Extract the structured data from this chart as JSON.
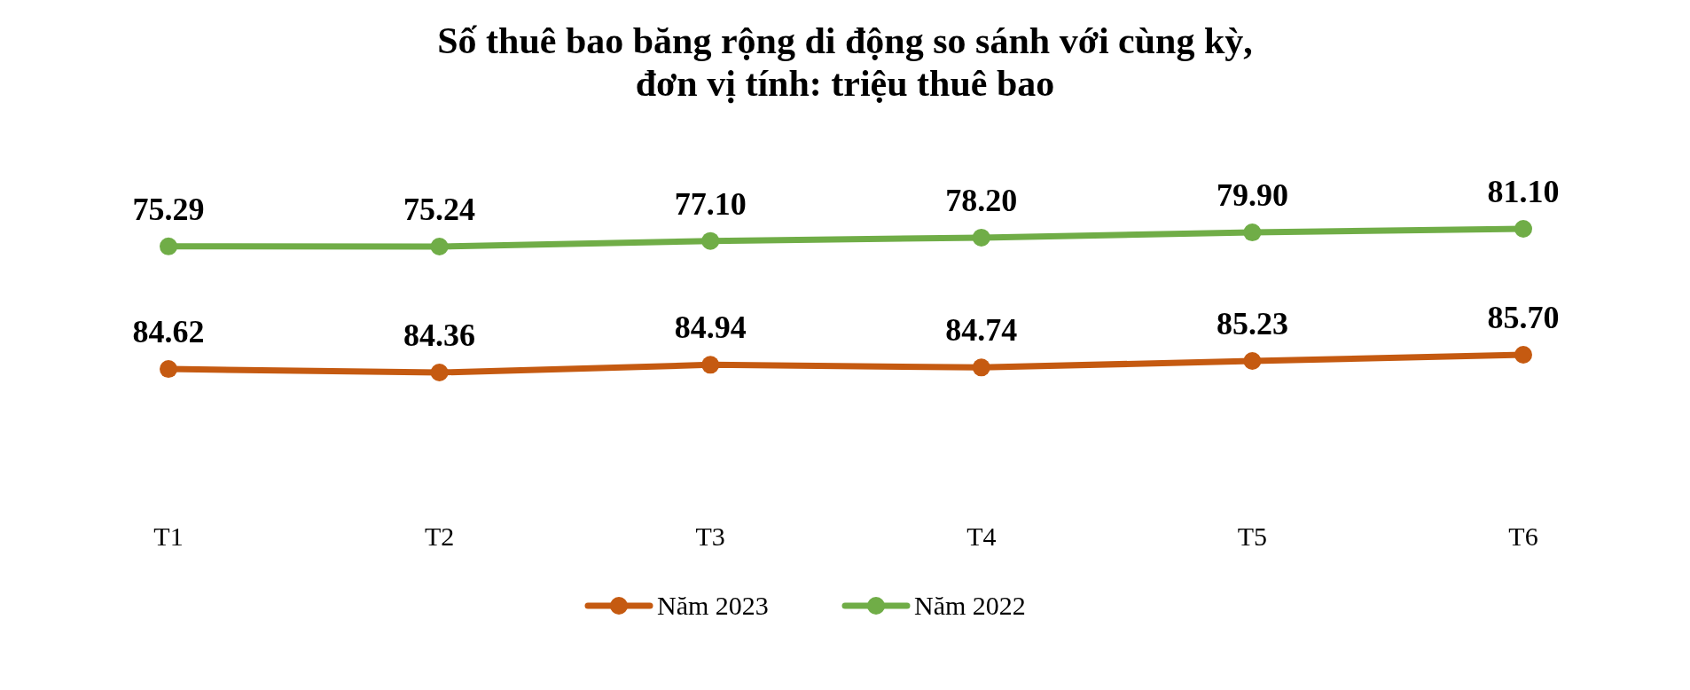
{
  "chart_data": [
    {
      "type": "line",
      "title": "Số thuê bao băng rộng di động so sánh với cùng kỳ,\nđơn vị tính: triệu thuê bao",
      "categories": [
        null,
        null,
        null,
        null,
        null,
        null
      ],
      "series": [
        {
          "name": "Năm 2022",
          "color": "#70ad47",
          "values": [
            75.29,
            75.24,
            77.1,
            78.2,
            79.9,
            81.1
          ],
          "value_labels": [
            "75.29",
            "75.24",
            "77.10",
            "78.20",
            "79.90",
            "81.10"
          ]
        }
      ],
      "tick_labels": false,
      "legend": "bottom",
      "marker": "circle",
      "line_style": "solid"
    },
    {
      "type": "line",
      "categories": [
        "T1",
        "T2",
        "T3",
        "T4",
        "T5",
        "T6"
      ],
      "series": [
        {
          "name": "Năm 2023",
          "color": "#c55a11",
          "values": [
            84.62,
            84.36,
            84.94,
            84.74,
            85.23,
            85.7
          ],
          "value_labels": [
            "84.62",
            "84.36",
            "84.94",
            "84.74",
            "85.23",
            "85.70"
          ]
        }
      ],
      "tick_labels": "x",
      "legend": "bottom",
      "marker": "circle",
      "line_style": "solid"
    }
  ]
}
